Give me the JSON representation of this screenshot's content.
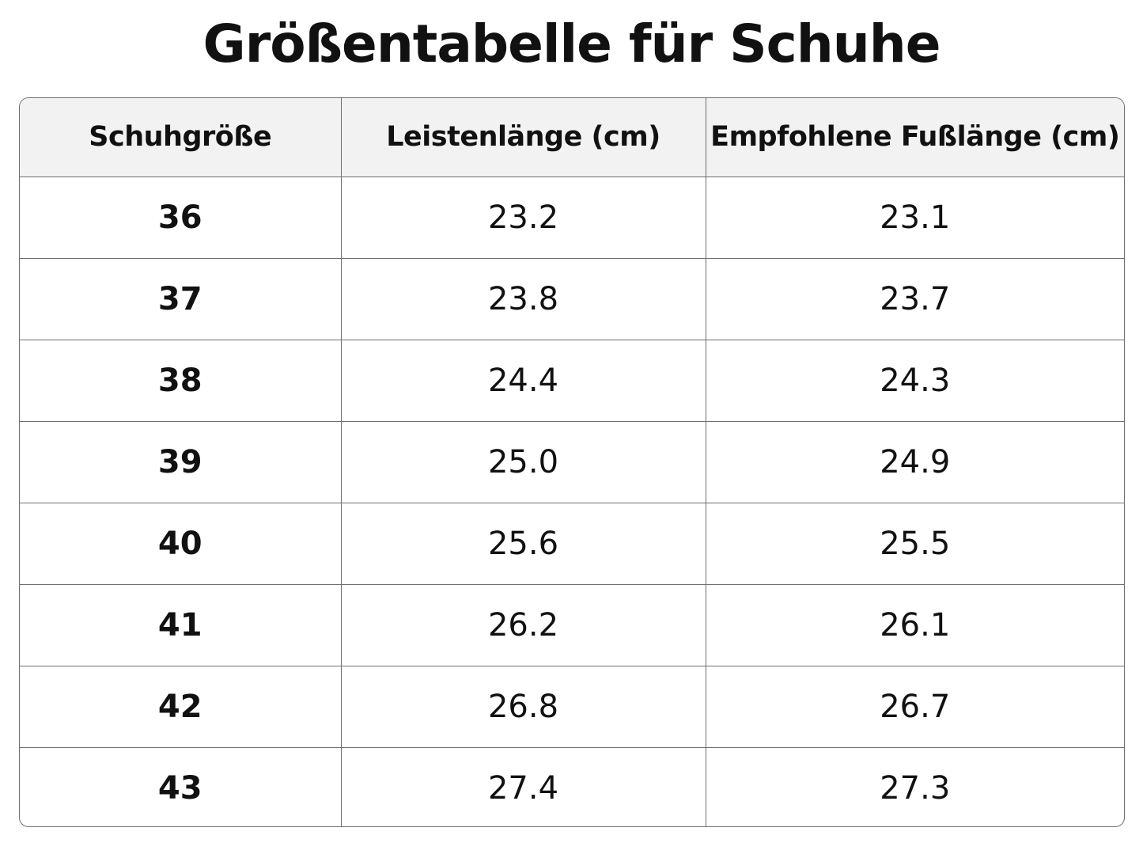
{
  "title": "Größentabelle für Schuhe",
  "table": {
    "headers": [
      "Schuhgröße",
      "Leistenlänge (cm)",
      "Empfohlene Fußlänge (cm)"
    ],
    "rows": [
      [
        "36",
        "23.2",
        "23.1"
      ],
      [
        "37",
        "23.8",
        "23.7"
      ],
      [
        "38",
        "24.4",
        "24.3"
      ],
      [
        "39",
        "25.0",
        "24.9"
      ],
      [
        "40",
        "25.6",
        "25.5"
      ],
      [
        "41",
        "26.2",
        "26.1"
      ],
      [
        "42",
        "26.8",
        "26.7"
      ],
      [
        "43",
        "27.4",
        "27.3"
      ]
    ]
  }
}
